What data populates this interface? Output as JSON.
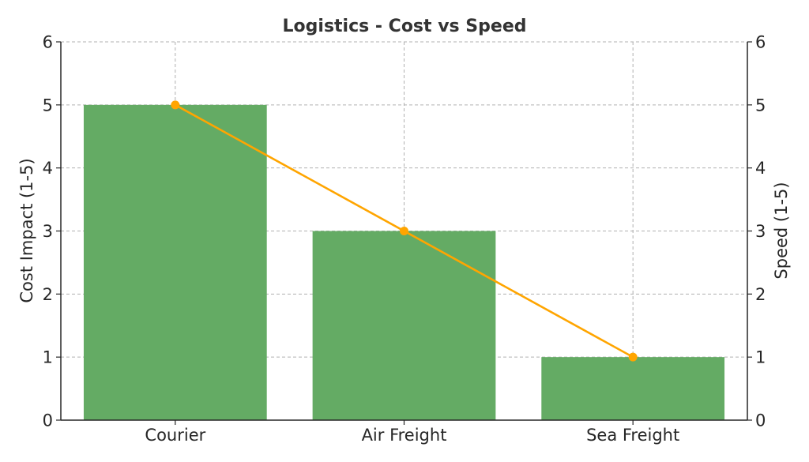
{
  "chart_data": {
    "type": "bar",
    "title": "Logistics - Cost vs Speed",
    "categories": [
      "Courier",
      "Air Freight",
      "Sea Freight"
    ],
    "series": [
      {
        "name": "Cost Impact (1-5)",
        "kind": "bar",
        "axis": "left",
        "values": [
          5,
          3,
          1
        ],
        "color": "#64ab64"
      },
      {
        "name": "Speed (1-5)",
        "kind": "line",
        "axis": "right",
        "values": [
          5,
          3,
          1
        ],
        "color": "#ffa500"
      }
    ],
    "xlabel": "",
    "ylabel": "Cost Impact (1-5)",
    "y2label": "Speed (1-5)",
    "ylim": [
      0,
      6
    ],
    "y2lim": [
      0,
      6
    ],
    "yticks": [
      "0",
      "1",
      "2",
      "3",
      "4",
      "5",
      "6"
    ],
    "y2ticks": [
      "0",
      "1",
      "2",
      "3",
      "4",
      "5",
      "6"
    ],
    "grid": true,
    "legend": "none"
  }
}
